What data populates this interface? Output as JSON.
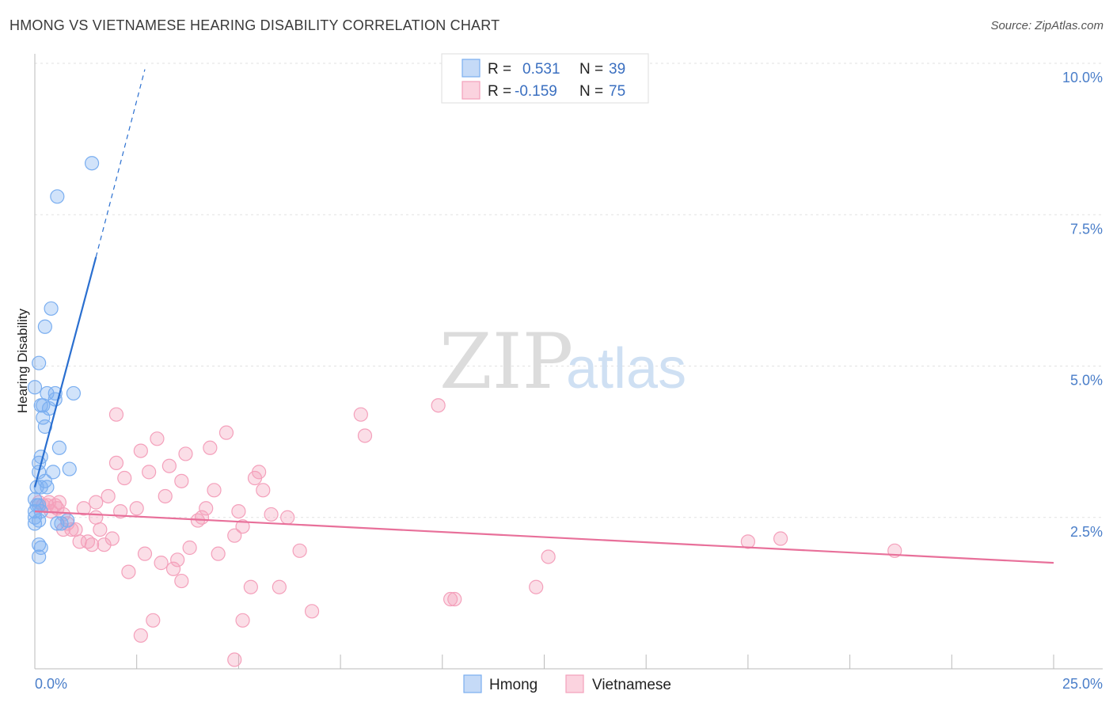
{
  "title": "HMONG VS VIETNAMESE HEARING DISABILITY CORRELATION CHART",
  "source": "Source: ZipAtlas.com",
  "watermark": {
    "part1": "ZIP",
    "part2": "atlas"
  },
  "colors": {
    "hmong": "#7aaef0",
    "vietnamese": "#f4a0bb",
    "hmong_line": "#2a6fd0",
    "vietnamese_line": "#e8709a",
    "tick": "#4a7ec9"
  },
  "legend": {
    "rows": [
      {
        "r_label": "R =",
        "r_value": "0.531",
        "n_label": "N =",
        "n_value": "39"
      },
      {
        "r_label": "R =",
        "r_value": "-0.159",
        "n_label": "N =",
        "n_value": "75"
      }
    ]
  },
  "chart_data": {
    "type": "scatter",
    "title": "HMONG VS VIETNAMESE HEARING DISABILITY CORRELATION CHART",
    "xlabel": "",
    "ylabel": "Hearing Disability",
    "xlim": [
      0,
      25
    ],
    "ylim": [
      0,
      10
    ],
    "x_tick_labels": [
      "0.0%",
      "25.0%"
    ],
    "y_tick_labels": [
      "2.5%",
      "5.0%",
      "7.5%",
      "10.0%"
    ],
    "y_ticks": [
      2.5,
      5.0,
      7.5,
      10.0
    ],
    "grid": true,
    "legend_position": "top-center",
    "series": [
      {
        "name": "Hmong",
        "r": 0.531,
        "n": 39,
        "trend": {
          "x0": 0.0,
          "y0": 3.0,
          "x1": 1.5,
          "y1": 6.8,
          "dashed_to_x": 2.7,
          "dashed_to_y": 9.9
        },
        "points": [
          [
            1.4,
            8.35
          ],
          [
            0.55,
            7.8
          ],
          [
            0.4,
            5.95
          ],
          [
            0.25,
            5.65
          ],
          [
            0.1,
            5.05
          ],
          [
            0.0,
            4.65
          ],
          [
            0.3,
            4.55
          ],
          [
            0.5,
            4.55
          ],
          [
            0.95,
            4.55
          ],
          [
            0.5,
            4.45
          ],
          [
            0.2,
            4.35
          ],
          [
            0.15,
            4.35
          ],
          [
            0.35,
            4.3
          ],
          [
            0.2,
            4.15
          ],
          [
            0.25,
            4.0
          ],
          [
            0.6,
            3.65
          ],
          [
            0.15,
            3.5
          ],
          [
            0.1,
            3.4
          ],
          [
            0.1,
            3.25
          ],
          [
            0.45,
            3.25
          ],
          [
            0.85,
            3.3
          ],
          [
            0.25,
            3.1
          ],
          [
            0.15,
            3.0
          ],
          [
            0.3,
            3.0
          ],
          [
            0.05,
            3.0
          ],
          [
            0.0,
            2.8
          ],
          [
            0.05,
            2.7
          ],
          [
            0.1,
            2.7
          ],
          [
            0.0,
            2.6
          ],
          [
            0.15,
            2.6
          ],
          [
            0.1,
            2.45
          ],
          [
            0.0,
            2.4
          ],
          [
            0.55,
            2.4
          ],
          [
            0.8,
            2.45
          ],
          [
            0.0,
            2.5
          ],
          [
            0.1,
            2.05
          ],
          [
            0.15,
            2.0
          ],
          [
            0.1,
            1.85
          ],
          [
            0.65,
            2.4
          ]
        ]
      },
      {
        "name": "Vietnamese",
        "r": -0.159,
        "n": 75,
        "trend": {
          "x0": 0.0,
          "y0": 2.6,
          "x1": 25.0,
          "y1": 1.75
        },
        "points": [
          [
            0.1,
            2.75
          ],
          [
            0.2,
            2.7
          ],
          [
            0.3,
            2.7
          ],
          [
            0.35,
            2.75
          ],
          [
            0.4,
            2.6
          ],
          [
            0.5,
            2.7
          ],
          [
            0.55,
            2.65
          ],
          [
            0.6,
            2.75
          ],
          [
            0.7,
            2.55
          ],
          [
            0.8,
            2.4
          ],
          [
            0.9,
            2.3
          ],
          [
            1.0,
            2.3
          ],
          [
            1.1,
            2.1
          ],
          [
            1.2,
            2.65
          ],
          [
            1.3,
            2.1
          ],
          [
            1.4,
            2.05
          ],
          [
            1.5,
            2.5
          ],
          [
            1.6,
            2.3
          ],
          [
            1.7,
            2.05
          ],
          [
            1.8,
            2.85
          ],
          [
            1.9,
            2.15
          ],
          [
            2.0,
            3.4
          ],
          [
            2.1,
            2.6
          ],
          [
            2.2,
            3.15
          ],
          [
            2.3,
            1.6
          ],
          [
            2.5,
            2.65
          ],
          [
            2.6,
            3.6
          ],
          [
            2.7,
            1.9
          ],
          [
            2.8,
            3.25
          ],
          [
            2.9,
            0.8
          ],
          [
            3.0,
            3.8
          ],
          [
            3.1,
            1.75
          ],
          [
            3.2,
            2.85
          ],
          [
            3.3,
            3.35
          ],
          [
            3.4,
            1.65
          ],
          [
            3.5,
            1.8
          ],
          [
            3.6,
            3.1
          ],
          [
            3.7,
            3.55
          ],
          [
            3.8,
            2.0
          ],
          [
            4.0,
            2.45
          ],
          [
            4.1,
            2.5
          ],
          [
            4.2,
            2.65
          ],
          [
            4.3,
            3.65
          ],
          [
            4.5,
            1.9
          ],
          [
            4.7,
            3.9
          ],
          [
            4.9,
            2.2
          ],
          [
            5.0,
            2.6
          ],
          [
            5.1,
            2.35
          ],
          [
            5.3,
            1.35
          ],
          [
            5.4,
            3.15
          ],
          [
            5.5,
            3.25
          ],
          [
            5.6,
            2.95
          ],
          [
            5.8,
            2.55
          ],
          [
            6.0,
            1.35
          ],
          [
            6.2,
            2.5
          ],
          [
            6.5,
            1.95
          ],
          [
            6.8,
            0.95
          ],
          [
            8.0,
            4.2
          ],
          [
            8.1,
            3.85
          ],
          [
            9.9,
            4.35
          ],
          [
            10.2,
            1.15
          ],
          [
            10.3,
            1.15
          ],
          [
            12.3,
            1.35
          ],
          [
            12.6,
            1.85
          ],
          [
            17.5,
            2.1
          ],
          [
            18.3,
            2.15
          ],
          [
            21.1,
            1.95
          ],
          [
            3.6,
            1.45
          ],
          [
            2.6,
            0.55
          ],
          [
            5.1,
            0.8
          ],
          [
            4.9,
            0.15
          ],
          [
            1.5,
            2.75
          ],
          [
            2.0,
            4.2
          ],
          [
            4.4,
            2.95
          ],
          [
            0.7,
            2.3
          ]
        ]
      }
    ]
  },
  "bottom_legend": [
    {
      "label": "Hmong"
    },
    {
      "label": "Vietnamese"
    }
  ]
}
